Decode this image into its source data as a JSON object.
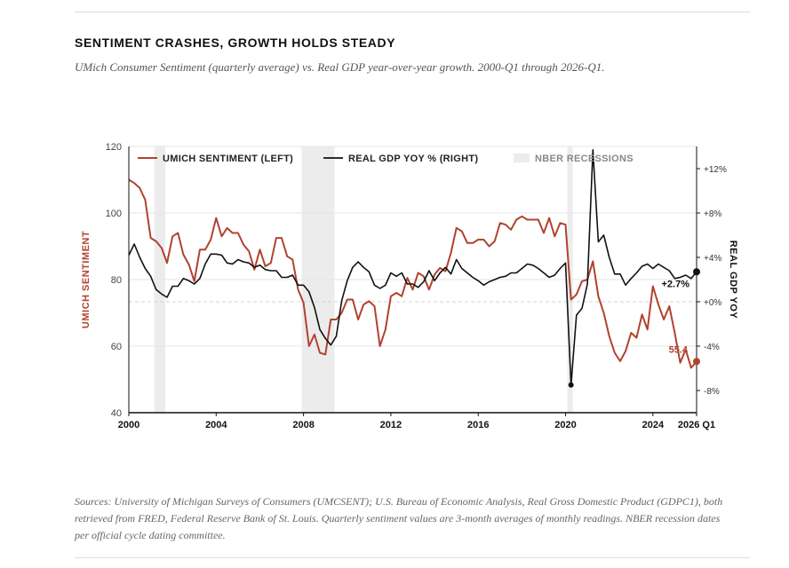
{
  "title": "SENTIMENT CRASHES, GROWTH HOLDS STEADY",
  "subtitle": "UMich Consumer Sentiment (quarterly average) vs. Real GDP year-over-year growth. 2000-Q1 through 2026-Q1.",
  "source": "Sources: University of Michigan Surveys of Consumers (UMCSENT); U.S. Bureau of Economic Analysis, Real Gross Domestic Product (GDPC1), both retrieved from FRED, Federal Reserve Bank of St. Louis. Quarterly sentiment values are 3-month averages of monthly readings. NBER recession dates per official cycle dating committee.",
  "colors": {
    "sentiment": "#b0432f",
    "gdp": "#111111",
    "recession": "#ececec",
    "grid": "#e6e6e6"
  },
  "chart_data": {
    "type": "line",
    "x_range": [
      2000,
      2026
    ],
    "x_ticks": [
      2000,
      2004,
      2008,
      2012,
      2016,
      2020,
      2024,
      2026
    ],
    "x_tick_labels": [
      "2000",
      "2004",
      "2008",
      "2012",
      "2016",
      "2020",
      "2024",
      "2026 Q1"
    ],
    "left_axis": {
      "label": "UMICH SENTIMENT",
      "range": [
        40,
        120
      ],
      "ticks": [
        40,
        60,
        80,
        100,
        120
      ]
    },
    "right_axis": {
      "label": "REAL GDP YOY",
      "range": [
        -10,
        14
      ],
      "ticks": [
        12,
        8,
        4,
        0,
        -4,
        -8
      ],
      "tick_labels": [
        "+12%",
        "+8%",
        "+4%",
        "+0%",
        "-4%",
        "-8%"
      ]
    },
    "legend": {
      "placement": "top",
      "items": [
        "UMICH SENTIMENT (LEFT)",
        "REAL GDP YOY % (RIGHT)",
        "NBER RECESSIONS"
      ]
    },
    "recessions": [
      [
        2001.17,
        2001.67
      ],
      [
        2007.92,
        2009.42
      ],
      [
        2020.08,
        2020.33
      ]
    ],
    "series": [
      {
        "name": "UMICH SENTIMENT (LEFT)",
        "axis": "left",
        "x": [
          2000.0,
          2000.25,
          2000.5,
          2000.75,
          2001.0,
          2001.25,
          2001.5,
          2001.75,
          2002.0,
          2002.25,
          2002.5,
          2002.75,
          2003.0,
          2003.25,
          2003.5,
          2003.75,
          2004.0,
          2004.25,
          2004.5,
          2004.75,
          2005.0,
          2005.25,
          2005.5,
          2005.75,
          2006.0,
          2006.25,
          2006.5,
          2006.75,
          2007.0,
          2007.25,
          2007.5,
          2007.75,
          2008.0,
          2008.25,
          2008.5,
          2008.75,
          2009.0,
          2009.25,
          2009.5,
          2009.75,
          2010.0,
          2010.25,
          2010.5,
          2010.75,
          2011.0,
          2011.25,
          2011.5,
          2011.75,
          2012.0,
          2012.25,
          2012.5,
          2012.75,
          2013.0,
          2013.25,
          2013.5,
          2013.75,
          2014.0,
          2014.25,
          2014.5,
          2014.75,
          2015.0,
          2015.25,
          2015.5,
          2015.75,
          2016.0,
          2016.25,
          2016.5,
          2016.75,
          2017.0,
          2017.25,
          2017.5,
          2017.75,
          2018.0,
          2018.25,
          2018.5,
          2018.75,
          2019.0,
          2019.25,
          2019.5,
          2019.75,
          2020.0,
          2020.25,
          2020.5,
          2020.75,
          2021.0,
          2021.25,
          2021.5,
          2021.75,
          2022.0,
          2022.25,
          2022.5,
          2022.75,
          2023.0,
          2023.25,
          2023.5,
          2023.75,
          2024.0,
          2024.25,
          2024.5,
          2024.75,
          2025.0,
          2025.25,
          2025.5,
          2025.75,
          2026.0
        ],
        "values": [
          110.0,
          109.0,
          107.5,
          104.0,
          92.5,
          91.5,
          89.5,
          85.0,
          93.0,
          94.0,
          87.5,
          84.5,
          79.5,
          89.0,
          89.0,
          92.0,
          98.5,
          93.0,
          95.5,
          94.0,
          94.0,
          90.5,
          88.5,
          83.0,
          89.0,
          84.0,
          85.0,
          92.5,
          92.5,
          87.0,
          86.0,
          77.0,
          73.0,
          60.0,
          63.5,
          58.0,
          57.5,
          68.0,
          68.0,
          70.0,
          74.0,
          74.0,
          68.0,
          72.5,
          73.5,
          72.0,
          60.0,
          65.0,
          75.0,
          76.0,
          75.0,
          80.5,
          77.0,
          82.0,
          81.0,
          77.0,
          81.5,
          83.5,
          82.5,
          88.0,
          95.5,
          94.5,
          91.0,
          91.0,
          92.0,
          92.0,
          90.0,
          91.5,
          97.0,
          96.5,
          95.0,
          98.0,
          99.0,
          98.0,
          98.0,
          98.0,
          94.0,
          98.5,
          93.0,
          97.0,
          96.5,
          74.0,
          75.5,
          79.5,
          80.0,
          85.5,
          75.0,
          70.0,
          63.0,
          58.0,
          55.5,
          58.5,
          64.0,
          62.5,
          69.5,
          65.0,
          78.0,
          72.5,
          68.0,
          72.0,
          64.0,
          55.0,
          59.0,
          53.5,
          55.4
        ]
      },
      {
        "name": "REAL GDP YOY % (RIGHT)",
        "axis": "right",
        "x": [
          2000.0,
          2000.25,
          2000.5,
          2000.75,
          2001.0,
          2001.25,
          2001.5,
          2001.75,
          2002.0,
          2002.25,
          2002.5,
          2002.75,
          2003.0,
          2003.25,
          2003.5,
          2003.75,
          2004.0,
          2004.25,
          2004.5,
          2004.75,
          2005.0,
          2005.25,
          2005.5,
          2005.75,
          2006.0,
          2006.25,
          2006.5,
          2006.75,
          2007.0,
          2007.25,
          2007.5,
          2007.75,
          2008.0,
          2008.25,
          2008.5,
          2008.75,
          2009.0,
          2009.25,
          2009.5,
          2009.75,
          2010.0,
          2010.25,
          2010.5,
          2010.75,
          2011.0,
          2011.25,
          2011.5,
          2011.75,
          2012.0,
          2012.25,
          2012.5,
          2012.75,
          2013.0,
          2013.25,
          2013.5,
          2013.75,
          2014.0,
          2014.25,
          2014.5,
          2014.75,
          2015.0,
          2015.25,
          2015.5,
          2015.75,
          2016.0,
          2016.25,
          2016.5,
          2016.75,
          2017.0,
          2017.25,
          2017.5,
          2017.75,
          2018.0,
          2018.25,
          2018.5,
          2018.75,
          2019.0,
          2019.25,
          2019.5,
          2019.75,
          2020.0,
          2020.25,
          2020.5,
          2020.75,
          2021.0,
          2021.25,
          2021.5,
          2021.75,
          2022.0,
          2022.25,
          2022.5,
          2022.75,
          2023.0,
          2023.25,
          2023.5,
          2023.75,
          2024.0,
          2024.25,
          2024.5,
          2024.75,
          2025.0,
          2025.25,
          2025.5,
          2025.75,
          2026.0
        ],
        "values": [
          4.2,
          5.2,
          4.0,
          3.0,
          2.3,
          1.1,
          0.7,
          0.4,
          1.4,
          1.4,
          2.1,
          1.9,
          1.6,
          2.1,
          3.4,
          4.3,
          4.3,
          4.2,
          3.5,
          3.4,
          3.8,
          3.6,
          3.5,
          3.1,
          3.3,
          2.9,
          2.8,
          2.8,
          2.2,
          2.2,
          2.4,
          1.5,
          1.5,
          0.9,
          -0.5,
          -2.5,
          -3.3,
          -3.9,
          -3.1,
          0.1,
          1.9,
          3.1,
          3.6,
          3.1,
          2.7,
          1.5,
          1.2,
          1.5,
          2.6,
          2.3,
          2.6,
          1.6,
          1.6,
          1.3,
          1.8,
          2.8,
          1.9,
          2.6,
          3.1,
          2.5,
          3.8,
          3.0,
          2.6,
          2.2,
          1.9,
          1.5,
          1.8,
          2.0,
          2.2,
          2.3,
          2.6,
          2.6,
          3.0,
          3.4,
          3.3,
          3.0,
          2.6,
          2.2,
          2.4,
          3.0,
          3.5,
          -7.5,
          -1.2,
          -0.6,
          1.6,
          13.7,
          5.4,
          6.0,
          4.0,
          2.5,
          2.5,
          1.5,
          2.1,
          2.6,
          3.2,
          3.4,
          3.0,
          3.4,
          3.1,
          2.8,
          2.1,
          2.2,
          2.4,
          2.1,
          2.7
        ]
      }
    ],
    "annotations": [
      {
        "text": "55.4",
        "series": "UMICH SENTIMENT (LEFT)",
        "x": 2026.0,
        "y": 55.4
      },
      {
        "text": "+2.7%",
        "series": "REAL GDP YOY % (RIGHT)",
        "x": 2026.0,
        "y": 2.7
      },
      {
        "series": "REAL GDP YOY % (RIGHT)",
        "x": 2020.25,
        "y": -7.5
      }
    ]
  }
}
